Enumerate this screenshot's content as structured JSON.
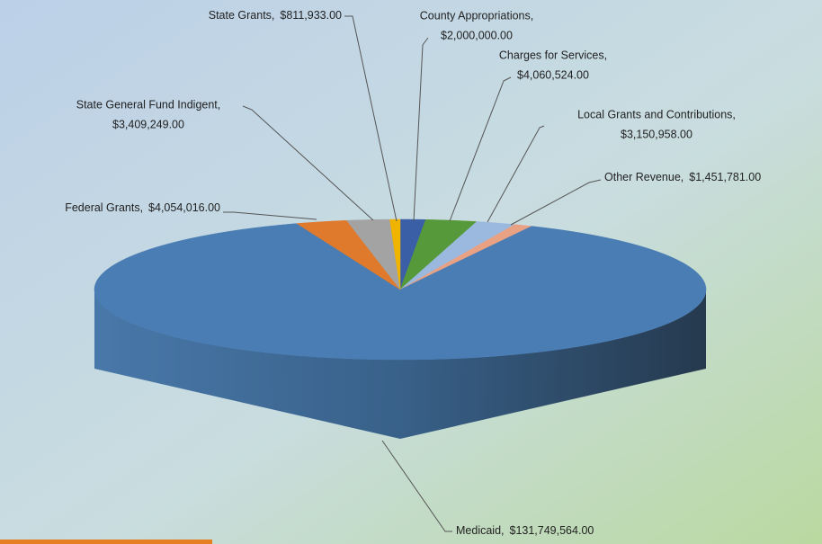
{
  "chart_data": {
    "type": "pie3d",
    "categories": [
      "County Appropriations,",
      "Charges for Services,",
      "Local Grants and Contributions,",
      "Other Revenue,",
      "Medicaid,",
      "Federal Grants,",
      "State General Fund Indigent,",
      "State Grants,"
    ],
    "values": [
      2000000,
      4060524,
      3150958,
      1451781,
      131749564,
      4054016,
      3409249,
      811933
    ],
    "value_labels": [
      "$2,000,000.00",
      "$4,060,524.00",
      "$3,150,958.00",
      "$1,451,781.00",
      "$131,749,564.00",
      "$4,054,016.00",
      "$3,409,249.00",
      "$811,933.00"
    ],
    "colors": [
      "#3b5fa6",
      "#56993a",
      "#9bb9df",
      "#e9a183",
      "#4a7db3",
      "#df7a2c",
      "#a3a3a3",
      "#efb300"
    ]
  }
}
